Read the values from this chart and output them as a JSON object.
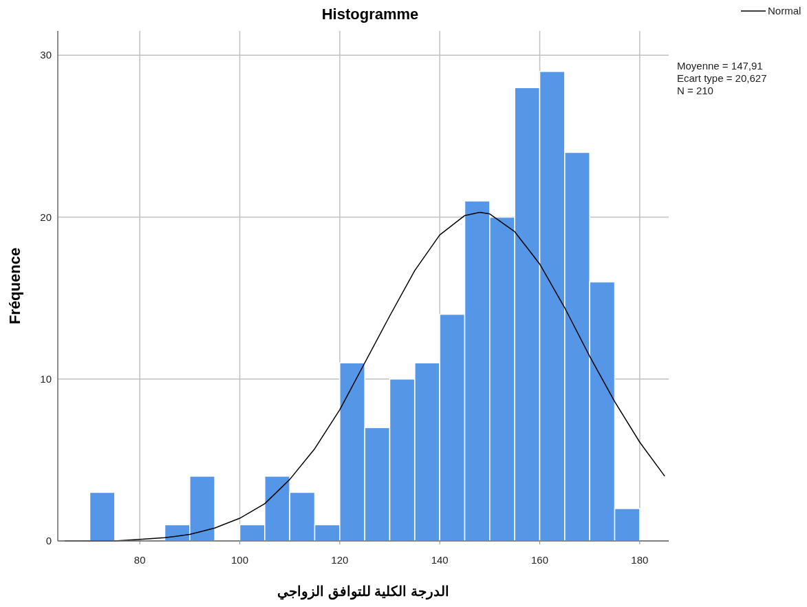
{
  "chart_data": {
    "type": "histogram",
    "title": "Histogramme",
    "xlabel": "الدرجة الكلية للتوافق الزواجي",
    "ylabel": "Fréquence",
    "bins": [
      70,
      75,
      80,
      85,
      90,
      95,
      100,
      105,
      110,
      115,
      120,
      125,
      130,
      135,
      140,
      145,
      150,
      155,
      160,
      165,
      170,
      175,
      180
    ],
    "series": [
      {
        "type": "histogram",
        "color": "#5596e6",
        "values": [
          3,
          0,
          0,
          1,
          4,
          0,
          1,
          4,
          3,
          1,
          11,
          7,
          10,
          11,
          14,
          21,
          20,
          28,
          29,
          24,
          16,
          2
        ]
      },
      {
        "type": "line",
        "name": "Normal",
        "color": "#000000",
        "x": [
          65,
          70,
          75,
          80,
          85,
          90,
          95,
          100,
          105,
          110,
          115,
          120,
          125,
          130,
          135,
          140,
          145,
          148,
          150,
          155,
          160,
          165,
          170,
          175,
          180,
          185
        ],
        "values": [
          0.0,
          0.0,
          0.0,
          0.1,
          0.2,
          0.4,
          0.8,
          1.4,
          2.3,
          3.8,
          5.7,
          8.1,
          11.0,
          13.9,
          16.7,
          18.9,
          20.1,
          20.3,
          20.2,
          19.1,
          17.1,
          14.4,
          11.4,
          8.6,
          6.1,
          4.0
        ]
      }
    ],
    "xlim": [
      63.6,
      185.8
    ],
    "ylim": [
      0,
      31.5
    ],
    "xticks": [
      80,
      100,
      120,
      140,
      160,
      180
    ],
    "yticks": [
      0,
      10,
      20,
      30
    ],
    "grid": true,
    "legend": "top right",
    "marker": "none",
    "annotations": [
      "Moyenne = 147,91",
      "Ecart type = 20,627",
      "N = 210"
    ]
  }
}
